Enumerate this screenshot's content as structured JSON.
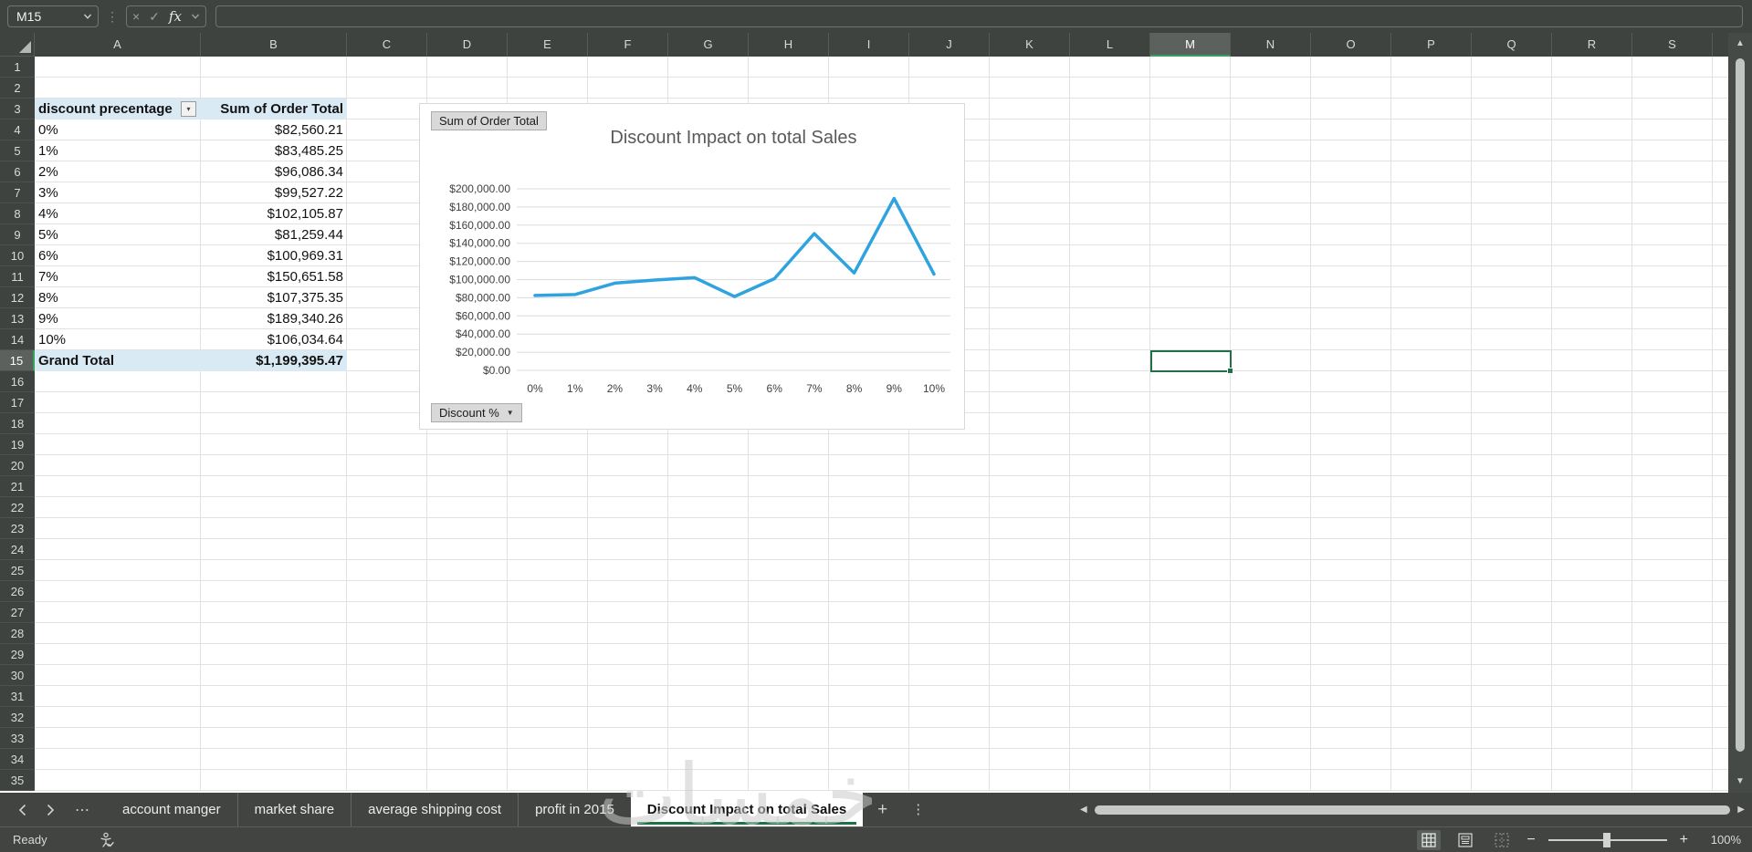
{
  "formula_bar": {
    "name_box": "M15",
    "formula_value": ""
  },
  "grid": {
    "column_letters": [
      "A",
      "B",
      "C",
      "D",
      "E",
      "F",
      "G",
      "H",
      "I",
      "J",
      "K",
      "L",
      "M",
      "N",
      "O",
      "P",
      "Q",
      "R",
      "S"
    ],
    "active_column": "M",
    "row_count": 35,
    "active_row": 15,
    "active_cell": "M15"
  },
  "pivot": {
    "header": {
      "label": "discount precentage",
      "value": "Sum of Order Total"
    },
    "rows": [
      {
        "label": "0%",
        "value": "$82,560.21"
      },
      {
        "label": "1%",
        "value": "$83,485.25"
      },
      {
        "label": "2%",
        "value": "$96,086.34"
      },
      {
        "label": "3%",
        "value": "$99,527.22"
      },
      {
        "label": "4%",
        "value": "$102,105.87"
      },
      {
        "label": "5%",
        "value": "$81,259.44"
      },
      {
        "label": "6%",
        "value": "$100,969.31"
      },
      {
        "label": "7%",
        "value": "$150,651.58"
      },
      {
        "label": "8%",
        "value": "$107,375.35"
      },
      {
        "label": "9%",
        "value": "$189,340.26"
      },
      {
        "label": "10%",
        "value": "$106,034.64"
      }
    ],
    "total": {
      "label": "Grand Total",
      "value": "$1,199,395.47"
    }
  },
  "chart_data": {
    "type": "line",
    "title": "Discount Impact on total Sales",
    "field_button": "Sum of Order Total",
    "axis_button": "Discount %",
    "categories": [
      "0%",
      "1%",
      "2%",
      "3%",
      "4%",
      "5%",
      "6%",
      "7%",
      "8%",
      "9%",
      "10%"
    ],
    "values": [
      82560.21,
      83485.25,
      96086.34,
      99527.22,
      102105.87,
      81259.44,
      100969.31,
      150651.58,
      107375.35,
      189340.26,
      106034.64
    ],
    "ylim": [
      0,
      200000
    ],
    "y_tick_step": 20000,
    "y_tick_labels": [
      "$0.00",
      "$20,000.00",
      "$40,000.00",
      "$60,000.00",
      "$80,000.00",
      "$100,000.00",
      "$120,000.00",
      "$140,000.00",
      "$160,000.00",
      "$180,000.00",
      "$200,000.00"
    ],
    "xlabel": "",
    "ylabel": "",
    "grid": true,
    "legend": "none",
    "line_color": "#2ea3df"
  },
  "sheet_tabs": {
    "tabs": [
      "account manger",
      "market share",
      "average shipping cost",
      "profit in 2015",
      "Discount Impact on total Sales"
    ],
    "active": "Discount Impact on total Sales",
    "add_label": "+"
  },
  "status_bar": {
    "mode": "Ready",
    "zoom": "100%"
  },
  "watermark": "خمسات",
  "colors": {
    "accent_green": "#1e7145",
    "chart_line": "#2ea3df",
    "pivot_fill": "#d9eaf5",
    "chrome": "#3f4340"
  }
}
